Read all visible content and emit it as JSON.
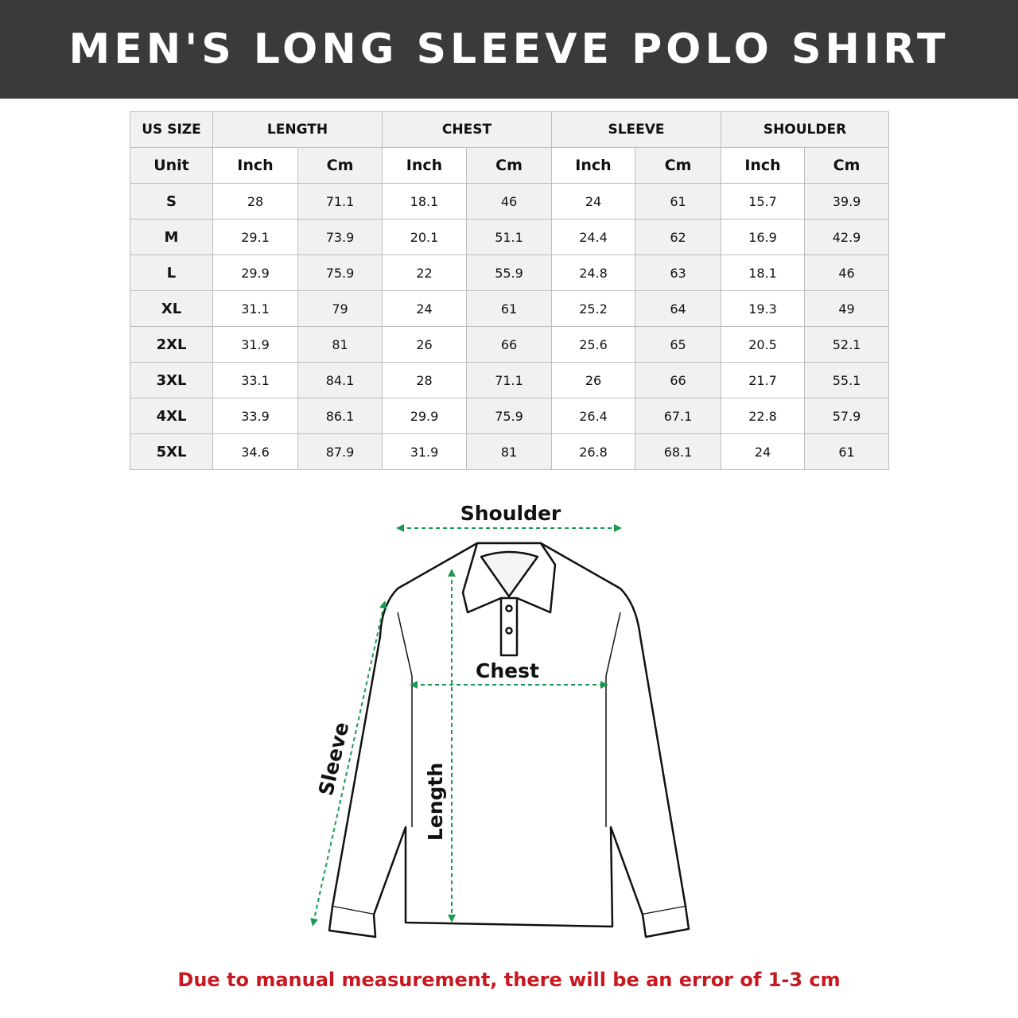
{
  "title": "MEN'S LONG SLEEVE POLO SHIRT",
  "table": {
    "group_headers": [
      "US SIZE",
      "LENGTH",
      "CHEST",
      "SLEEVE",
      "SHOULDER"
    ],
    "unit_row": [
      "Unit",
      "Inch",
      "Cm",
      "Inch",
      "Cm",
      "Inch",
      "Cm",
      "Inch",
      "Cm"
    ],
    "rows": [
      [
        "S",
        "28",
        "71.1",
        "18.1",
        "46",
        "24",
        "61",
        "15.7",
        "39.9"
      ],
      [
        "M",
        "29.1",
        "73.9",
        "20.1",
        "51.1",
        "24.4",
        "62",
        "16.9",
        "42.9"
      ],
      [
        "L",
        "29.9",
        "75.9",
        "22",
        "55.9",
        "24.8",
        "63",
        "18.1",
        "46"
      ],
      [
        "XL",
        "31.1",
        "79",
        "24",
        "61",
        "25.2",
        "64",
        "19.3",
        "49"
      ],
      [
        "2XL",
        "31.9",
        "81",
        "26",
        "66",
        "25.6",
        "65",
        "20.5",
        "52.1"
      ],
      [
        "3XL",
        "33.1",
        "84.1",
        "28",
        "71.1",
        "26",
        "66",
        "21.7",
        "55.1"
      ],
      [
        "4XL",
        "33.9",
        "86.1",
        "29.9",
        "75.9",
        "26.4",
        "67.1",
        "22.8",
        "57.9"
      ],
      [
        "5XL",
        "34.6",
        "87.9",
        "31.9",
        "81",
        "26.8",
        "68.1",
        "24",
        "61"
      ]
    ]
  },
  "diagram": {
    "labels": {
      "shoulder": "Shoulder",
      "chest": "Chest",
      "sleeve": "Sleeve",
      "length": "Length"
    },
    "arrow_color": "#1a9a50"
  },
  "note": "Due to manual measurement, there will be an error of 1-3 cm",
  "colors": {
    "banner": "#3a3a38",
    "note": "#c8171e"
  }
}
